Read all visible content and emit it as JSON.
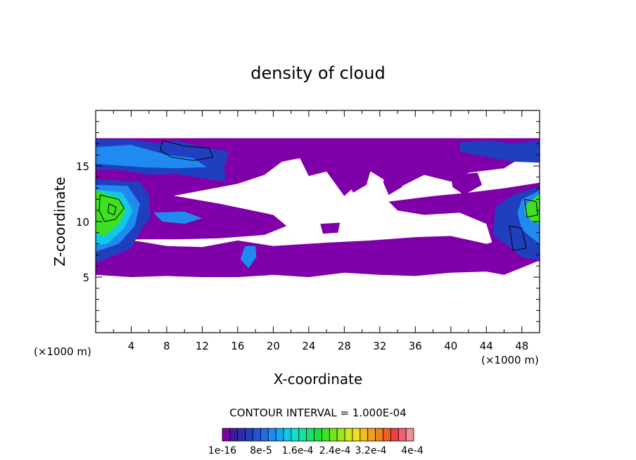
{
  "chart_data": {
    "type": "heatmap",
    "title": "density of cloud",
    "xlabel": "X-coordinate",
    "ylabel": "Z-coordinate",
    "x_unit_left": "(×1000 m)",
    "x_unit_right": "(×1000 m)",
    "xlim": [
      0,
      50
    ],
    "ylim": [
      0,
      20
    ],
    "x_ticks": [
      4,
      8,
      12,
      16,
      20,
      24,
      28,
      32,
      36,
      40,
      44,
      48
    ],
    "y_ticks": [
      5,
      10,
      15
    ],
    "contour_interval_text": "CONTOUR INTERVAL = 1.000E-04",
    "colorbar": {
      "colors": [
        "#7f00a8",
        "#3f1a9f",
        "#2e2ea8",
        "#1f3fbf",
        "#1f55d6",
        "#1f6ee6",
        "#1f8bf0",
        "#15a8f0",
        "#10c8e6",
        "#10e0d0",
        "#10e6a0",
        "#10e670",
        "#18e040",
        "#3fe01f",
        "#6fe61f",
        "#9fe61f",
        "#cfe61f",
        "#efe020",
        "#f0c020",
        "#f0a020",
        "#f08020",
        "#f06020",
        "#f04040",
        "#f06070",
        "#f09090"
      ],
      "labels": [
        "1e-16",
        "8e-5",
        "1.6e-4",
        "2.4e-4",
        "3.2e-4",
        "4e-4"
      ]
    },
    "field_colors": {
      "low": "#7f00a8",
      "mid_low": "#1f3fbf",
      "mid": "#1f8bf0",
      "mid_high": "#10c8e6",
      "high": "#3fe01f"
    }
  }
}
